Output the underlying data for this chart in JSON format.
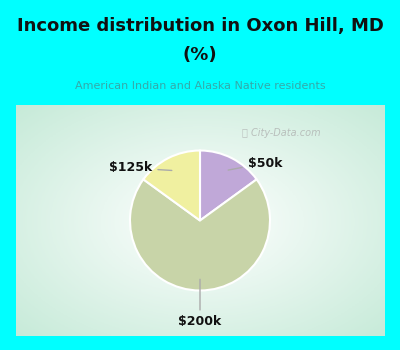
{
  "title_line1": "Income distribution in Oxon Hill, MD",
  "title_line2": "(%)",
  "subtitle": "American Indian and Alaska Native residents",
  "header_bg": "#00ffff",
  "chart_bg": "#e8f8f0",
  "border_color": "#00ffff",
  "border_width": 12,
  "slice_values": [
    15,
    15,
    70
  ],
  "slice_colors": [
    "#c0a8d8",
    "#f0f0a0",
    "#c8d4a8"
  ],
  "slice_labels": [
    "$50k",
    "$125k",
    "$200k"
  ],
  "startangle": 90,
  "counterclock": false,
  "watermark": "City-Data.com",
  "subtitle_color": "#33aaaa",
  "title_color": "#111111",
  "label_color": "#111111"
}
